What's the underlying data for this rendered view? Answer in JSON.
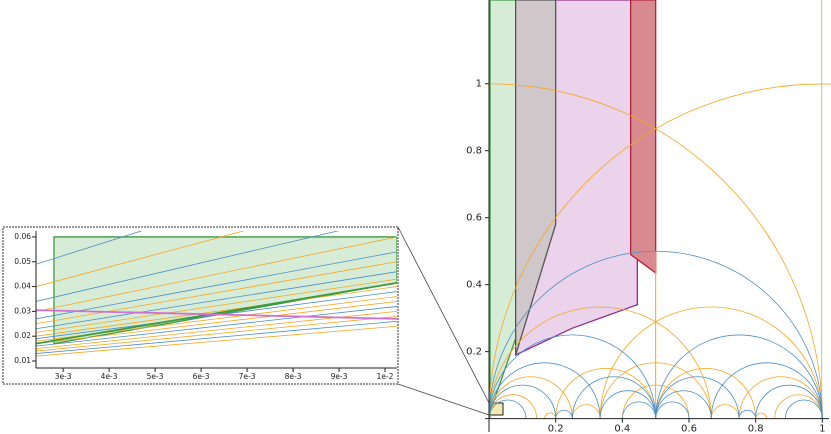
{
  "chart_data": [
    {
      "type": "region",
      "xlim": [
        -0.012,
        1.02
      ],
      "ylim": [
        -0.04,
        1.25
      ],
      "xticks": [
        0.2,
        0.4,
        0.6,
        0.8,
        1
      ],
      "yticks": [
        0.2,
        0.4,
        0.6,
        0.8,
        1
      ],
      "regions": [
        {
          "fill": "#d7ecd7",
          "stroke": "#3d9a3d",
          "x": [
            0.003,
            0.2,
            0.2,
            0.003
          ],
          "y": [
            1.25,
            1.25,
            0.58,
            0.02
          ]
        },
        {
          "fill": "#ebd3eb",
          "stroke": "#8e2a93",
          "x": [
            0.08,
            0.425,
            0.425,
            0.445,
            0.445,
            0.25,
            0.08
          ],
          "y": [
            1.25,
            1.25,
            0.49,
            0.49,
            0.34,
            0.27,
            0.19
          ]
        },
        {
          "fill": "#cfc7ca",
          "stroke": "#555555",
          "x": [
            0.08,
            0.2,
            0.2,
            0.08
          ],
          "y": [
            1.25,
            1.25,
            0.58,
            0.19
          ]
        },
        {
          "fill": "#d98a90",
          "stroke": "#b3203a",
          "x": [
            0.425,
            0.5,
            0.5,
            0.425
          ],
          "y": [
            1.25,
            1.25,
            0.435,
            0.49
          ]
        }
      ],
      "arcs": [
        {
          "color": "#f5a623",
          "ends": [
            [
              -1,
              1
            ],
            [
              0,
              2
            ],
            [
              0,
              0.6667
            ],
            [
              0.3333,
              1
            ],
            [
              0.3333,
              0.6667
            ],
            [
              0.2,
              0.5
            ],
            [
              0.5,
              0.8
            ],
            [
              0,
              0.25
            ],
            [
              0.75,
              1
            ],
            [
              0.4,
              0.6
            ],
            [
              0,
              0.1429
            ],
            [
              0.8571,
              1
            ],
            [
              0.25,
              0.3333
            ],
            [
              0.6667,
              0.75
            ],
            [
              0.1667,
              0.2
            ],
            [
              0.8,
              0.8333
            ]
          ]
        },
        {
          "color": "#4a8fc6",
          "ends": [
            [
              0,
              1
            ],
            [
              0,
              0.5
            ],
            [
              0.5,
              1
            ],
            [
              0,
              0.3333
            ],
            [
              0.6667,
              1
            ],
            [
              0.25,
              0.5
            ],
            [
              0.5,
              0.75
            ],
            [
              0.3333,
              0.5
            ],
            [
              0.5,
              0.6667
            ],
            [
              0.2,
              0.25
            ],
            [
              0,
              0.2
            ],
            [
              0.8,
              1
            ],
            [
              0.75,
              0.8
            ],
            [
              0.4,
              0.5
            ],
            [
              0.5,
              0.6
            ],
            [
              0,
              0.1111
            ],
            [
              0.8889,
              1
            ]
          ]
        }
      ],
      "verticals": [
        {
          "color": "#3d9a3d",
          "x": 0.003,
          "y": [
            0,
            1.25
          ]
        },
        {
          "color": "#9fd09f",
          "x": 0.998,
          "y": [
            0,
            1.25
          ]
        },
        {
          "color": "#f5a623",
          "x": 0.5,
          "y": [
            0,
            0.5
          ]
        }
      ]
    },
    {
      "type": "region",
      "xlim": [
        0.00241,
        0.01026
      ],
      "ylim": [
        0.00718,
        0.0624
      ],
      "xticks": [
        {
          "value": 0.003,
          "label": "3e-3"
        },
        {
          "value": 0.004,
          "label": "4e-3"
        },
        {
          "value": 0.005,
          "label": "5e-3"
        },
        {
          "value": 0.006,
          "label": "6e-3"
        },
        {
          "value": 0.007,
          "label": "7e-3"
        },
        {
          "value": 0.008,
          "label": "8e-3"
        },
        {
          "value": 0.009,
          "label": "9e-3"
        },
        {
          "value": 0.01,
          "label": "1e-2"
        }
      ],
      "yticks": [
        0.01,
        0.02,
        0.03,
        0.04,
        0.05,
        0.06
      ],
      "regions": [
        {
          "fill": "#d7ecd7",
          "stroke": "#3d9a3d",
          "x": [
            0.0028,
            0.01026,
            0.01026,
            0.0028
          ],
          "y": [
            0.06,
            0.06,
            0.0415,
            0.017
          ]
        }
      ],
      "x": [
        0.00241,
        0.01026
      ],
      "series": [
        {
          "color": "#4a8fc6",
          "values": [
            0.049,
            0.095
          ]
        },
        {
          "color": "#f5a623",
          "values": [
            0.04,
            0.079
          ]
        },
        {
          "color": "#4a8fc6",
          "values": [
            0.034,
            0.068
          ]
        },
        {
          "color": "#f5a623",
          "values": [
            0.03,
            0.06
          ]
        },
        {
          "color": "#4a8fc6",
          "values": [
            0.027,
            0.054
          ]
        },
        {
          "color": "#f5a623",
          "values": [
            0.025,
            0.05
          ]
        },
        {
          "color": "#4a8fc6",
          "values": [
            0.023,
            0.046
          ]
        },
        {
          "color": "#f5a623",
          "values": [
            0.0215,
            0.043
          ]
        },
        {
          "color": "#f5a623",
          "values": [
            0.02,
            0.04
          ]
        },
        {
          "color": "#4a8fc6",
          "values": [
            0.019,
            0.038
          ]
        },
        {
          "color": "#f5a623",
          "values": [
            0.018,
            0.036
          ]
        },
        {
          "color": "#f5a623",
          "values": [
            0.017,
            0.034
          ]
        },
        {
          "color": "#4a8fc6",
          "values": [
            0.016,
            0.032
          ]
        },
        {
          "color": "#f5a623",
          "values": [
            0.015,
            0.03
          ]
        },
        {
          "color": "#f5a623",
          "values": [
            0.014,
            0.028
          ]
        },
        {
          "color": "#4a8fc6",
          "values": [
            0.013,
            0.026
          ]
        },
        {
          "color": "#f5a623",
          "values": [
            0.012,
            0.024
          ]
        },
        {
          "color": "#3d9a3d",
          "values": [
            0.017,
            0.0415
          ]
        },
        {
          "color": "#d070d0",
          "values": [
            0.0305,
            0.027
          ]
        }
      ]
    }
  ]
}
